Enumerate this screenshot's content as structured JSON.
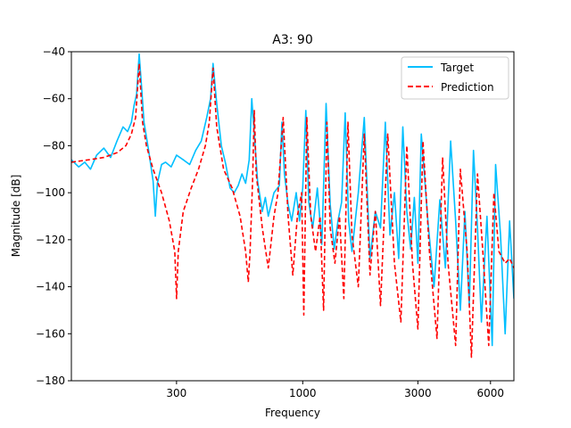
{
  "chart_data": {
    "type": "line",
    "title": "A3: 90",
    "xlabel": "Frequency",
    "ylabel": "Magnitude [dB]",
    "xscale": "log",
    "xlim": [
      110,
      7500
    ],
    "ylim": [
      -180,
      -40
    ],
    "xticks": [
      300,
      1000,
      3000,
      6000
    ],
    "xtick_labels": [
      "300",
      "1000",
      "3000",
      "6000"
    ],
    "yticks": [
      -180,
      -160,
      -140,
      -120,
      -100,
      -80,
      -60,
      -40
    ],
    "ytick_labels": [
      "−180",
      "−160",
      "−140",
      "−120",
      "−100",
      "−80",
      "−60",
      "−40"
    ],
    "grid": false,
    "legend_position": "top-right",
    "series": [
      {
        "name": "Target",
        "color": "#00BFFF",
        "style": "solid",
        "points": [
          [
            110,
            -86
          ],
          [
            118,
            -89
          ],
          [
            125,
            -87
          ],
          [
            132,
            -90
          ],
          [
            140,
            -84
          ],
          [
            150,
            -81
          ],
          [
            160,
            -85
          ],
          [
            170,
            -78
          ],
          [
            180,
            -72
          ],
          [
            188,
            -74
          ],
          [
            195,
            -70
          ],
          [
            200,
            -63
          ],
          [
            205,
            -58
          ],
          [
            210,
            -41
          ],
          [
            215,
            -55
          ],
          [
            220,
            -70
          ],
          [
            230,
            -82
          ],
          [
            240,
            -95
          ],
          [
            245,
            -110
          ],
          [
            250,
            -96
          ],
          [
            260,
            -88
          ],
          [
            270,
            -87
          ],
          [
            285,
            -89
          ],
          [
            300,
            -84
          ],
          [
            320,
            -86
          ],
          [
            340,
            -88
          ],
          [
            360,
            -82
          ],
          [
            380,
            -78
          ],
          [
            400,
            -68
          ],
          [
            415,
            -60
          ],
          [
            425,
            -45
          ],
          [
            440,
            -62
          ],
          [
            460,
            -80
          ],
          [
            480,
            -88
          ],
          [
            500,
            -98
          ],
          [
            520,
            -100
          ],
          [
            540,
            -97
          ],
          [
            560,
            -92
          ],
          [
            580,
            -96
          ],
          [
            600,
            -86
          ],
          [
            615,
            -60
          ],
          [
            630,
            -75
          ],
          [
            650,
            -95
          ],
          [
            680,
            -108
          ],
          [
            700,
            -102
          ],
          [
            720,
            -110
          ],
          [
            760,
            -100
          ],
          [
            800,
            -97
          ],
          [
            820,
            -70
          ],
          [
            840,
            -92
          ],
          [
            870,
            -105
          ],
          [
            900,
            -112
          ],
          [
            940,
            -100
          ],
          [
            970,
            -112
          ],
          [
            1000,
            -98
          ],
          [
            1030,
            -65
          ],
          [
            1060,
            -104
          ],
          [
            1100,
            -115
          ],
          [
            1150,
            -98
          ],
          [
            1200,
            -122
          ],
          [
            1250,
            -62
          ],
          [
            1300,
            -105
          ],
          [
            1350,
            -124
          ],
          [
            1400,
            -112
          ],
          [
            1450,
            -104
          ],
          [
            1500,
            -66
          ],
          [
            1550,
            -112
          ],
          [
            1600,
            -125
          ],
          [
            1700,
            -100
          ],
          [
            1800,
            -68
          ],
          [
            1900,
            -128
          ],
          [
            2000,
            -108
          ],
          [
            2100,
            -115
          ],
          [
            2200,
            -70
          ],
          [
            2300,
            -118
          ],
          [
            2400,
            -100
          ],
          [
            2500,
            -128
          ],
          [
            2600,
            -72
          ],
          [
            2700,
            -108
          ],
          [
            2800,
            -124
          ],
          [
            2900,
            -102
          ],
          [
            3000,
            -130
          ],
          [
            3100,
            -75
          ],
          [
            3300,
            -112
          ],
          [
            3500,
            -140
          ],
          [
            3700,
            -103
          ],
          [
            3900,
            -132
          ],
          [
            4100,
            -78
          ],
          [
            4300,
            -112
          ],
          [
            4500,
            -150
          ],
          [
            4700,
            -108
          ],
          [
            4900,
            -148
          ],
          [
            5100,
            -82
          ],
          [
            5300,
            -115
          ],
          [
            5500,
            -155
          ],
          [
            5800,
            -110
          ],
          [
            6100,
            -165
          ],
          [
            6300,
            -88
          ],
          [
            6600,
            -118
          ],
          [
            6900,
            -160
          ],
          [
            7200,
            -112
          ],
          [
            7500,
            -145
          ]
        ]
      },
      {
        "name": "Prediction",
        "color": "#FF0000",
        "style": "dashed",
        "points": [
          [
            110,
            -87
          ],
          [
            130,
            -86
          ],
          [
            150,
            -85
          ],
          [
            170,
            -83
          ],
          [
            185,
            -80
          ],
          [
            195,
            -75
          ],
          [
            203,
            -68
          ],
          [
            210,
            -45
          ],
          [
            217,
            -70
          ],
          [
            225,
            -80
          ],
          [
            240,
            -90
          ],
          [
            260,
            -100
          ],
          [
            280,
            -112
          ],
          [
            295,
            -125
          ],
          [
            300,
            -145
          ],
          [
            305,
            -125
          ],
          [
            320,
            -108
          ],
          [
            345,
            -98
          ],
          [
            370,
            -90
          ],
          [
            395,
            -80
          ],
          [
            410,
            -70
          ],
          [
            425,
            -47
          ],
          [
            440,
            -72
          ],
          [
            470,
            -90
          ],
          [
            510,
            -98
          ],
          [
            550,
            -110
          ],
          [
            580,
            -125
          ],
          [
            595,
            -138
          ],
          [
            605,
            -125
          ],
          [
            620,
            -95
          ],
          [
            630,
            -65
          ],
          [
            642,
            -92
          ],
          [
            680,
            -115
          ],
          [
            720,
            -132
          ],
          [
            760,
            -110
          ],
          [
            790,
            -100
          ],
          [
            830,
            -68
          ],
          [
            870,
            -110
          ],
          [
            910,
            -135
          ],
          [
            950,
            -110
          ],
          [
            990,
            -100
          ],
          [
            1010,
            -152
          ],
          [
            1040,
            -68
          ],
          [
            1080,
            -110
          ],
          [
            1130,
            -125
          ],
          [
            1180,
            -110
          ],
          [
            1220,
            -150
          ],
          [
            1260,
            -70
          ],
          [
            1300,
            -115
          ],
          [
            1360,
            -130
          ],
          [
            1420,
            -110
          ],
          [
            1480,
            -145
          ],
          [
            1540,
            -70
          ],
          [
            1600,
            -118
          ],
          [
            1700,
            -140
          ],
          [
            1800,
            -75
          ],
          [
            1900,
            -135
          ],
          [
            2000,
            -108
          ],
          [
            2100,
            -148
          ],
          [
            2250,
            -75
          ],
          [
            2400,
            -130
          ],
          [
            2550,
            -155
          ],
          [
            2700,
            -80
          ],
          [
            2850,
            -130
          ],
          [
            3000,
            -158
          ],
          [
            3150,
            -78
          ],
          [
            3350,
            -125
          ],
          [
            3600,
            -162
          ],
          [
            3800,
            -85
          ],
          [
            4000,
            -130
          ],
          [
            4300,
            -165
          ],
          [
            4500,
            -90
          ],
          [
            4800,
            -125
          ],
          [
            5000,
            -170
          ],
          [
            5300,
            -92
          ],
          [
            5600,
            -128
          ],
          [
            5900,
            -165
          ],
          [
            6200,
            -100
          ],
          [
            6500,
            -125
          ],
          [
            6900,
            -130
          ],
          [
            7200,
            -128
          ],
          [
            7500,
            -132
          ]
        ]
      }
    ]
  }
}
